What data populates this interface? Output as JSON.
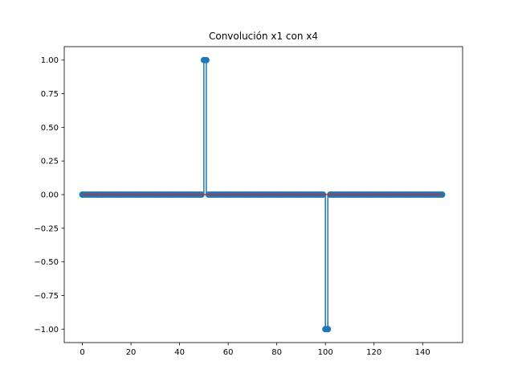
{
  "chart_data": {
    "type": "stem",
    "title": "Convolución x1 con x4",
    "xlabel": "",
    "ylabel": "",
    "xlim": [
      -7.45,
      156.45
    ],
    "ylim": [
      -1.1,
      1.1
    ],
    "xticks": [
      0,
      20,
      40,
      60,
      80,
      100,
      120,
      140
    ],
    "xtick_labels": [
      "0",
      "20",
      "40",
      "60",
      "80",
      "100",
      "120",
      "140"
    ],
    "yticks": [
      -1.0,
      -0.75,
      -0.5,
      -0.25,
      0.0,
      0.25,
      0.5,
      0.75,
      1.0
    ],
    "ytick_labels": [
      "−1.00",
      "−0.75",
      "−0.50",
      "−0.25",
      "0.00",
      "0.25",
      "0.50",
      "0.75",
      "1.00"
    ],
    "grid": false,
    "legend": "none",
    "n_samples": 149,
    "x_start": 0,
    "nonzero": [
      {
        "x": 50,
        "y": 1
      },
      {
        "x": 51,
        "y": 1
      },
      {
        "x": 100,
        "y": -1
      },
      {
        "x": 101,
        "y": -1
      }
    ],
    "default_y": 0,
    "colors": {
      "stem": "#1f77b4",
      "marker": "#1f77b4",
      "baseline": "#d62728"
    }
  }
}
